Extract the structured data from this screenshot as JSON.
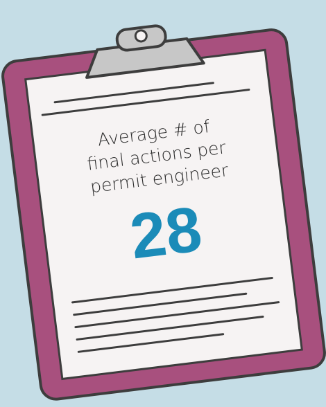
{
  "card": {
    "label_lines": [
      "Average # of",
      "final actions per",
      "permit engineer"
    ],
    "value": 28
  }
}
